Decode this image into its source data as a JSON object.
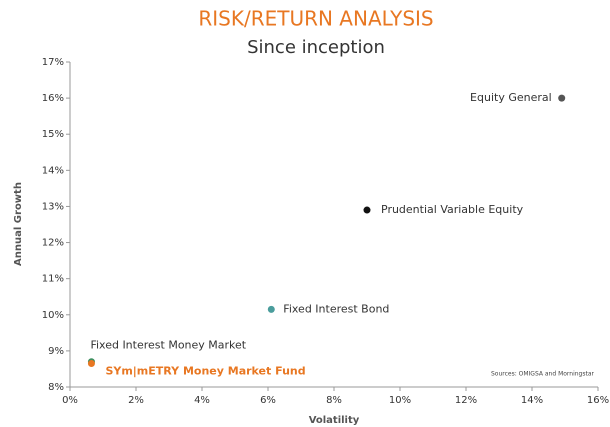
{
  "chart_data": {
    "type": "scatter",
    "title": "RISK/RETURN ANALYSIS",
    "subtitle": "Since inception",
    "x_label": "Volatility",
    "y_label": "Annual Growth",
    "annotation": "Sources: OMIGSA and Morningstar",
    "xlim": [
      0,
      16
    ],
    "ylim": [
      8,
      17
    ],
    "xticks": [
      {
        "value": 0,
        "label": "0%"
      },
      {
        "value": 2,
        "label": "2%"
      },
      {
        "value": 4,
        "label": "4%"
      },
      {
        "value": 6,
        "label": "6%"
      },
      {
        "value": 8,
        "label": "8%"
      },
      {
        "value": 10,
        "label": "10%"
      },
      {
        "value": 12,
        "label": "12%"
      },
      {
        "value": 14,
        "label": "14%"
      },
      {
        "value": 16,
        "label": "16%"
      }
    ],
    "yticks": [
      {
        "value": 8,
        "label": "8%"
      },
      {
        "value": 9,
        "label": "9%"
      },
      {
        "value": 10,
        "label": "10%"
      },
      {
        "value": 11,
        "label": "11%"
      },
      {
        "value": 12,
        "label": "12%"
      },
      {
        "value": 13,
        "label": "13%"
      },
      {
        "value": 14,
        "label": "14%"
      },
      {
        "value": 15,
        "label": "15%"
      },
      {
        "value": 16,
        "label": "16%"
      },
      {
        "value": 17,
        "label": "17%"
      }
    ],
    "grid": false,
    "series": [
      {
        "name": "Equity General",
        "color": "#555555",
        "x": [
          14.9
        ],
        "y": [
          16.0
        ]
      },
      {
        "name": "Prudential Variable Equity",
        "color": "#111111",
        "x": [
          9.0
        ],
        "y": [
          12.9
        ]
      },
      {
        "name": "Fixed Interest Bond",
        "color": "#4a9d9c",
        "x": [
          6.1
        ],
        "y": [
          10.15
        ]
      },
      {
        "name": "Fixed Interest Money Market",
        "color": "#3d8f5f",
        "x": [
          0.65
        ],
        "y": [
          8.7
        ]
      },
      {
        "name": "SYm|mETRY Money Market Fund",
        "color": "#e87722",
        "x": [
          0.65
        ],
        "y": [
          8.65
        ]
      }
    ]
  }
}
